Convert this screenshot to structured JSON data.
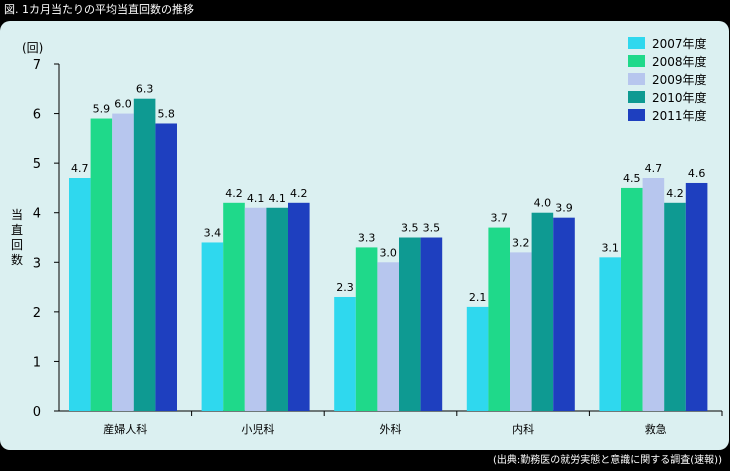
{
  "figure_title": "図. 1カ月当たりの平均当直回数の推移",
  "source_note": "(出典:勤務医の就労実態と意識に関する調査(速報))",
  "colors": {
    "background": "#000000",
    "panel": "#dbf0f1",
    "series": [
      "#2fd8ee",
      "#1fd98a",
      "#b7c6ee",
      "#0e9a92",
      "#1e3fbf"
    ]
  },
  "chart_data": {
    "type": "bar",
    "title": "",
    "ylabel": "当直回数",
    "yunit": "(回)",
    "xlabel": "",
    "ylim": [
      0,
      7
    ],
    "yticks": [
      0,
      1,
      2,
      3,
      4,
      5,
      6,
      7
    ],
    "grid": false,
    "legend_position": "top-right",
    "categories": [
      "産婦人科",
      "小児科",
      "外科",
      "内科",
      "救急"
    ],
    "series": [
      {
        "name": "2007年度",
        "values": [
          4.7,
          3.4,
          2.3,
          2.1,
          3.1
        ]
      },
      {
        "name": "2008年度",
        "values": [
          5.9,
          4.2,
          3.3,
          3.7,
          4.5
        ]
      },
      {
        "name": "2009年度",
        "values": [
          6.0,
          4.1,
          3.0,
          3.2,
          4.7
        ]
      },
      {
        "name": "2010年度",
        "values": [
          6.3,
          4.1,
          3.5,
          4.0,
          4.2
        ]
      },
      {
        "name": "2011年度",
        "values": [
          5.8,
          4.2,
          3.5,
          3.9,
          4.6
        ]
      }
    ]
  }
}
